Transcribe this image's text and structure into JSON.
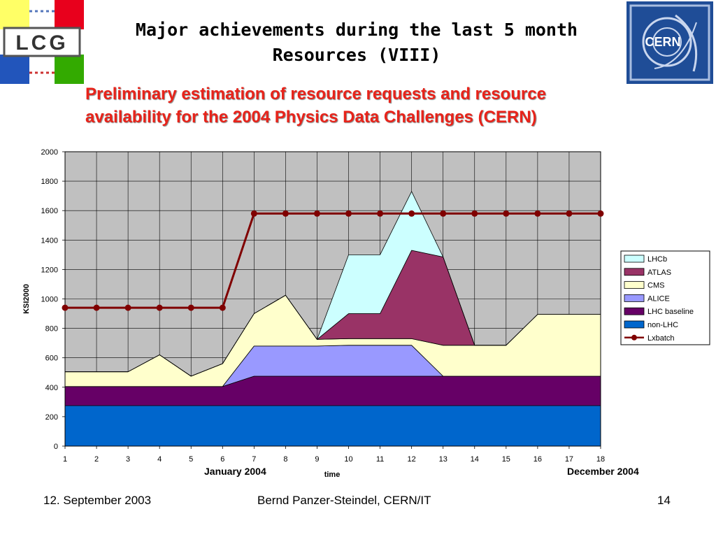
{
  "slide": {
    "title_line1": "Major achievements during the last 5 month",
    "title_line2": "Resources (VIII)",
    "subtitle_line1": "Preliminary estimation of resource requests and resource",
    "subtitle_line2": "availability for the 2004 Physics Data Challenges (CERN)",
    "start_label": "January 2004",
    "end_label": "December 2004",
    "lcg_logo_text": "LCG",
    "cern_logo_text": "CERN"
  },
  "footer": {
    "date": "12. September 2003",
    "author": "Bernd Panzer-Steindel, CERN/IT",
    "page": "14"
  },
  "colors": {
    "non_lhc": "#0066cc",
    "lhc_baseline": "#660066",
    "alice": "#9999ff",
    "cms": "#ffffcc",
    "atlas": "#993366",
    "lhcb": "#ccffff",
    "lxbatch": "#800000",
    "plot_bg": "#c0c0c0",
    "title_red": "#e8231a"
  },
  "chart_data": {
    "type": "area",
    "stacked": true,
    "xlabel": "time",
    "ylabel": "KSI2000",
    "ylim": [
      0,
      2000
    ],
    "yticks": [
      0,
      200,
      400,
      600,
      800,
      1000,
      1200,
      1400,
      1600,
      1800,
      2000
    ],
    "x": [
      1,
      2,
      3,
      4,
      5,
      6,
      7,
      8,
      9,
      10,
      11,
      12,
      13,
      14,
      15,
      16,
      17,
      18
    ],
    "grid": true,
    "legend_position": "right",
    "series": [
      {
        "name": "non-LHC",
        "type": "area",
        "color": "#0066cc",
        "values": [
          275,
          275,
          275,
          275,
          275,
          275,
          275,
          275,
          275,
          275,
          275,
          275,
          275,
          275,
          275,
          275,
          275,
          275
        ]
      },
      {
        "name": "LHC baseline",
        "type": "area",
        "color": "#660066",
        "values": [
          130,
          130,
          130,
          130,
          130,
          130,
          200,
          200,
          200,
          200,
          200,
          200,
          200,
          200,
          200,
          200,
          200,
          200
        ]
      },
      {
        "name": "ALICE",
        "type": "area",
        "color": "#9999ff",
        "values": [
          0,
          0,
          0,
          0,
          0,
          0,
          205,
          205,
          205,
          210,
          210,
          210,
          0,
          0,
          0,
          0,
          0,
          0
        ]
      },
      {
        "name": "CMS",
        "type": "area",
        "color": "#ffffcc",
        "values": [
          100,
          100,
          100,
          215,
          70,
          155,
          220,
          345,
          45,
          45,
          45,
          45,
          210,
          210,
          210,
          420,
          420,
          420
        ]
      },
      {
        "name": "ATLAS",
        "type": "area",
        "color": "#993366",
        "values": [
          0,
          0,
          0,
          0,
          0,
          0,
          0,
          0,
          0,
          170,
          170,
          600,
          600,
          0,
          0,
          0,
          0,
          0
        ]
      },
      {
        "name": "LHCb",
        "type": "area",
        "color": "#ccffff",
        "values": [
          0,
          0,
          0,
          0,
          0,
          0,
          0,
          0,
          0,
          400,
          400,
          400,
          0,
          0,
          0,
          0,
          0,
          0
        ]
      },
      {
        "name": "Lxbatch",
        "type": "line",
        "color": "#800000",
        "values": [
          940,
          940,
          940,
          940,
          940,
          940,
          1580,
          1580,
          1580,
          1580,
          1580,
          1580,
          1580,
          1580,
          1580,
          1580,
          1580,
          1580
        ]
      }
    ]
  }
}
